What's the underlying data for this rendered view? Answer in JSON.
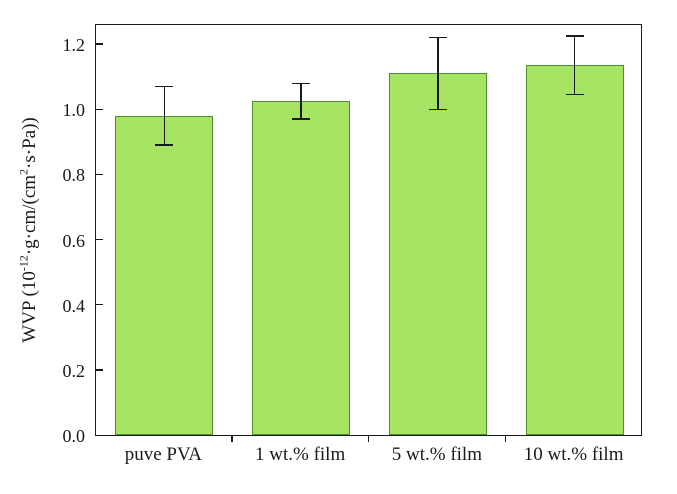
{
  "chart_data": {
    "type": "bar",
    "title": "",
    "xlabel": "",
    "ylabel": "WVP (10^-12 g·cm/(cm^2·s·Pa))",
    "ylabel_parts": {
      "p1": "WVP (10",
      "sup1": "-12",
      "p2": "·g·cm/(cm",
      "sup2": "2",
      "p3": "·s·Pa))"
    },
    "categories": [
      "puve PVA",
      "1 wt.% film",
      "5 wt.% film",
      "10 wt.% film"
    ],
    "values": [
      0.98,
      1.025,
      1.11,
      1.135
    ],
    "errors": [
      0.09,
      0.055,
      0.11,
      0.09
    ],
    "ytick_labels": [
      "0.0",
      "0.2",
      "0.4",
      "0.6",
      "0.8",
      "1.0",
      "1.2"
    ],
    "ytick_values": [
      0,
      0.2,
      0.4,
      0.6,
      0.8,
      1.0,
      1.2
    ],
    "ylim": [
      0,
      1.265
    ],
    "grid": false,
    "legend": "none",
    "bar_fill": "#a6e464",
    "bar_edge": "#4f8f2b",
    "error_color": "#1a1a1a",
    "axis_color": "#1a1a1a",
    "background": "#ffffff"
  }
}
